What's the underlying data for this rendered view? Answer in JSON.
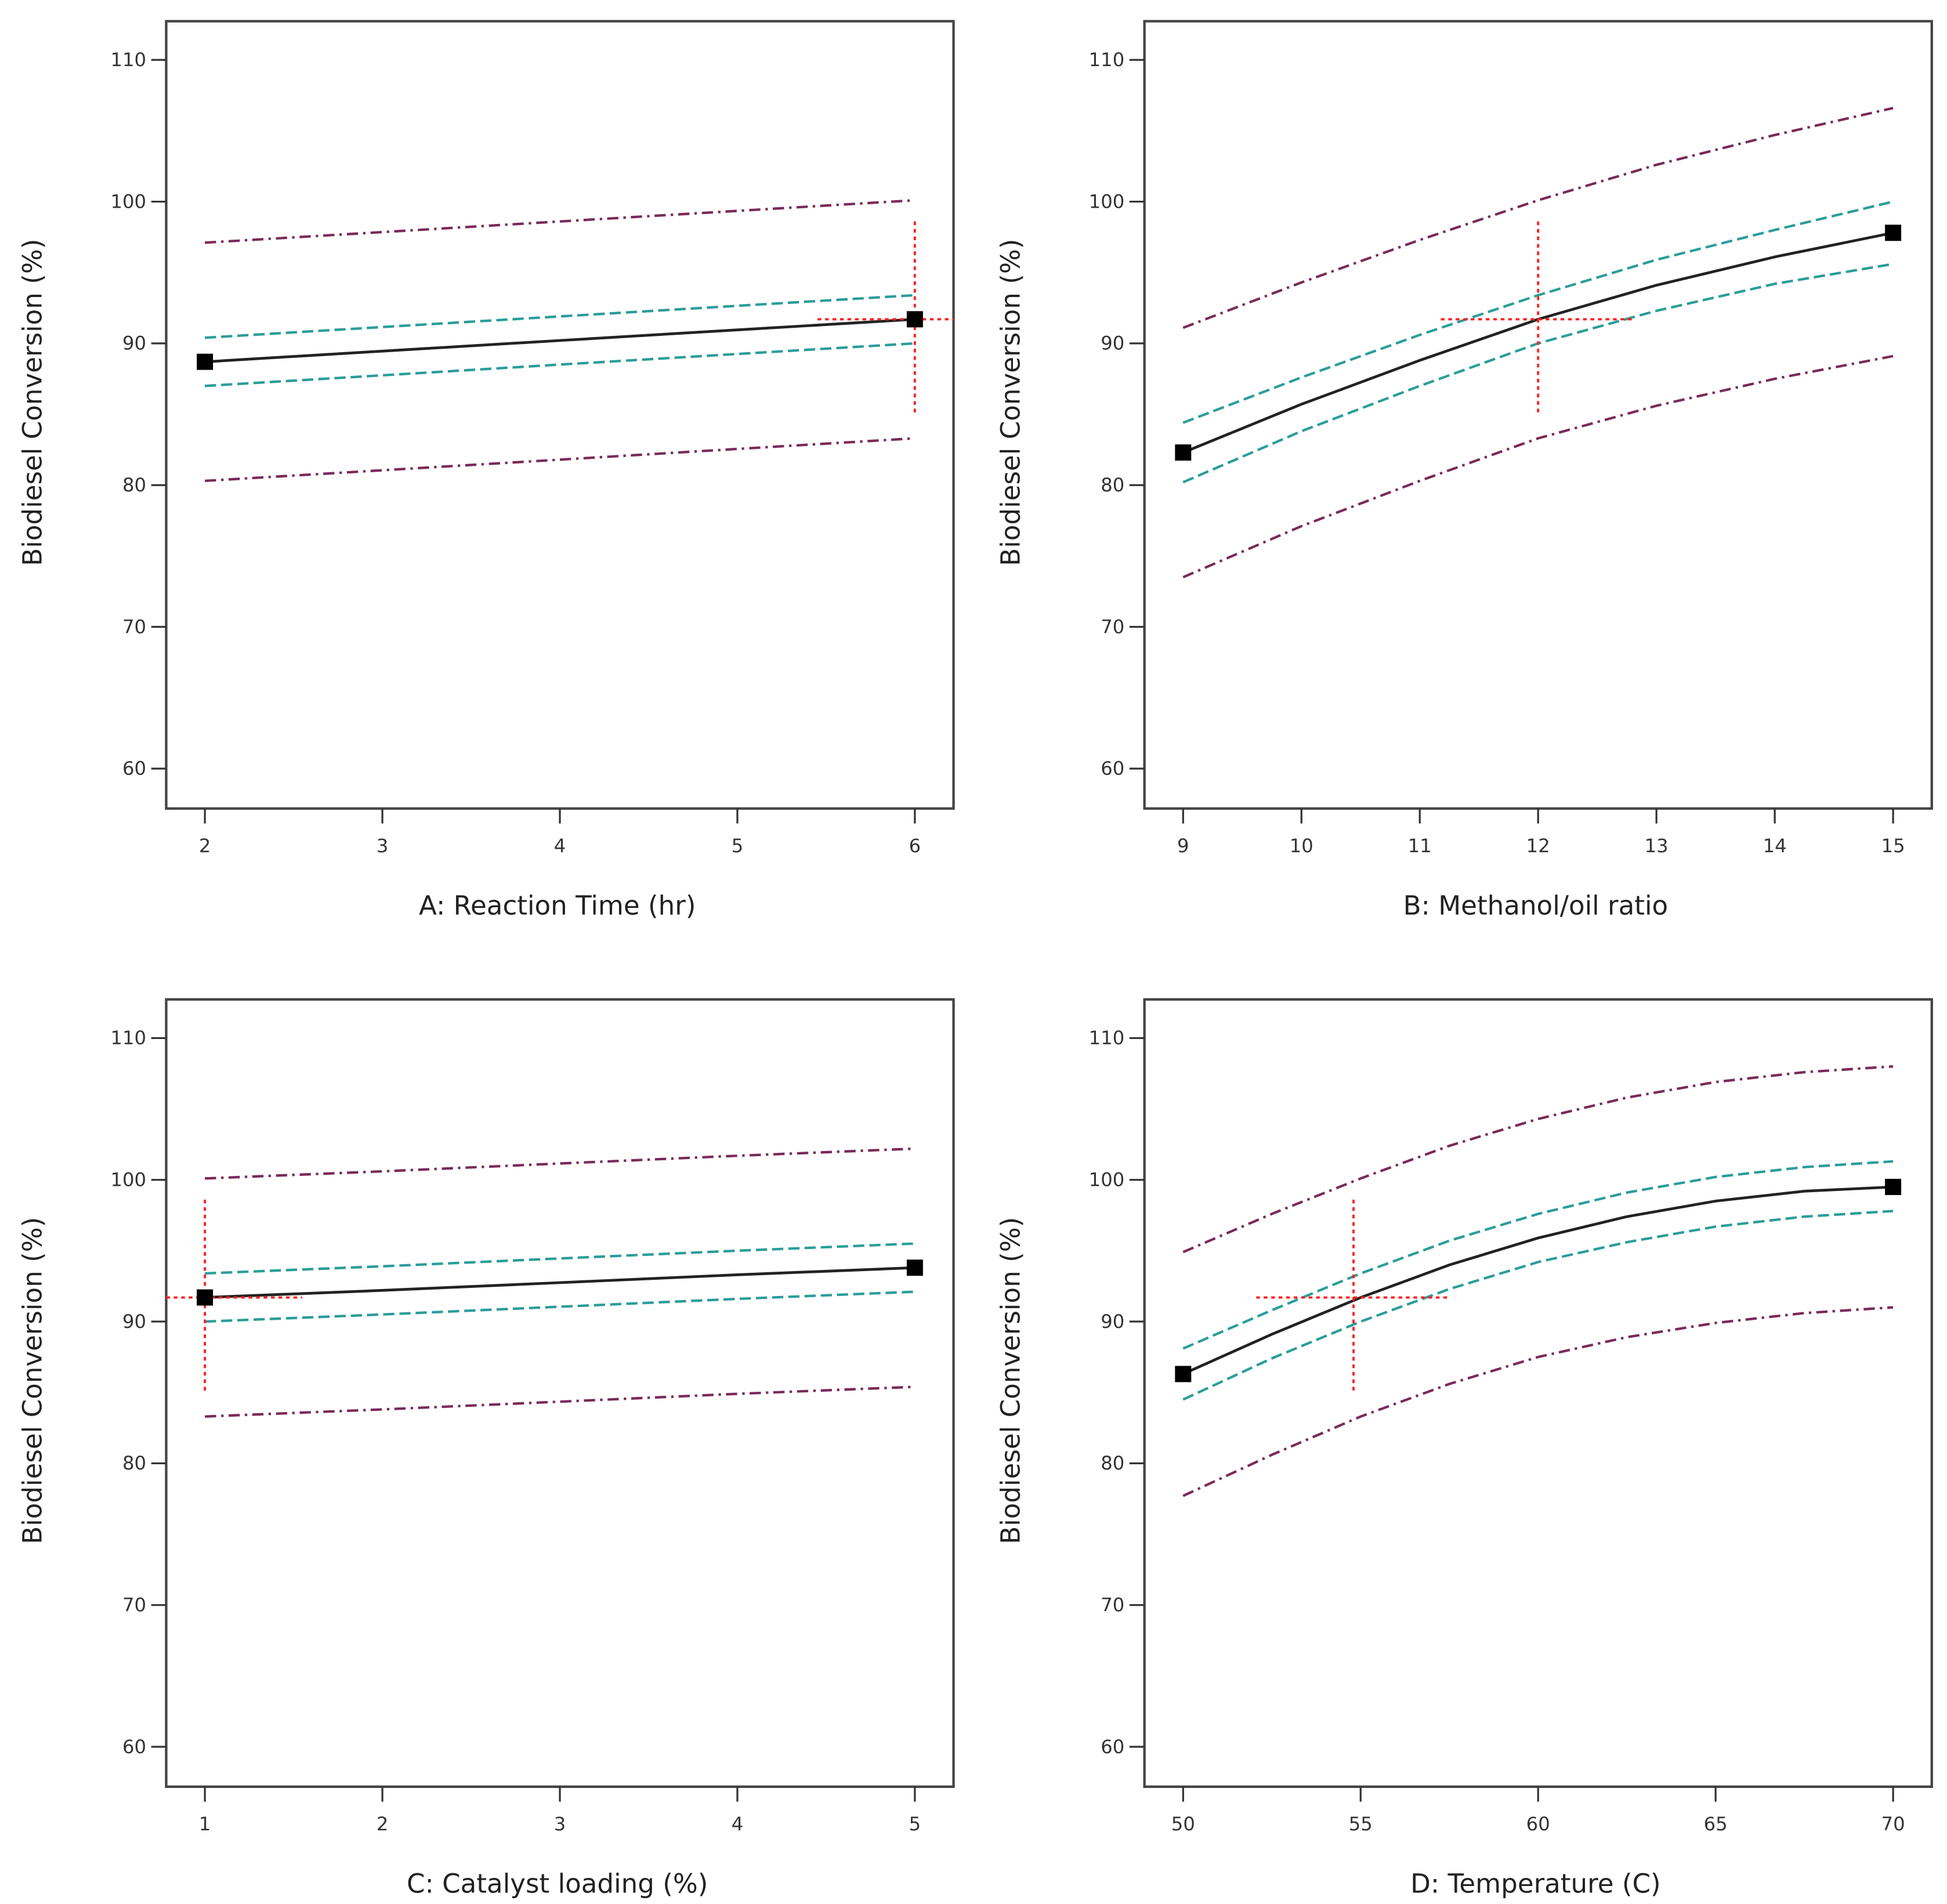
{
  "chart_data": [
    {
      "type": "line",
      "title": "",
      "xlabel": "A: Reaction Time (hr)",
      "ylabel": "Biodiesel Conversion (%)",
      "xlim": [
        2,
        6
      ],
      "ylim": [
        60,
        110
      ],
      "xticks": [
        2,
        3,
        4,
        5,
        6
      ],
      "yticks": [
        60,
        70,
        80,
        90,
        100,
        110
      ],
      "x": [
        2,
        3,
        4,
        5,
        6
      ],
      "prediction": [
        88.7,
        89.45,
        90.2,
        90.95,
        91.7
      ],
      "ci_upper": [
        90.4,
        91.15,
        91.9,
        92.65,
        93.4
      ],
      "ci_lower": [
        87.0,
        87.75,
        88.5,
        89.25,
        90.0
      ],
      "pi_upper": [
        97.1,
        97.85,
        98.6,
        99.35,
        100.1
      ],
      "pi_lower": [
        80.3,
        81.05,
        81.8,
        82.55,
        83.3
      ],
      "current_point": {
        "x": 6,
        "y": 91.7
      }
    },
    {
      "type": "line",
      "title": "",
      "xlabel": "B: Methanol/oil ratio",
      "ylabel": "Biodiesel Conversion (%)",
      "xlim": [
        9,
        15
      ],
      "ylim": [
        60,
        110
      ],
      "xticks": [
        9,
        10,
        11,
        12,
        13,
        14,
        15
      ],
      "yticks": [
        60,
        70,
        80,
        90,
        100,
        110
      ],
      "x": [
        9,
        10,
        11,
        12,
        13,
        14,
        15
      ],
      "prediction": [
        82.3,
        85.7,
        88.8,
        91.7,
        94.1,
        96.1,
        97.8
      ],
      "ci_upper": [
        84.4,
        87.6,
        90.6,
        93.4,
        95.9,
        98.0,
        100.0
      ],
      "ci_lower": [
        80.2,
        83.8,
        87.0,
        90.0,
        92.3,
        94.2,
        95.6
      ],
      "pi_upper": [
        91.1,
        94.3,
        97.3,
        100.1,
        102.6,
        104.7,
        106.6
      ],
      "pi_lower": [
        73.5,
        77.1,
        80.3,
        83.3,
        85.6,
        87.5,
        89.1
      ],
      "current_point": {
        "x": 12,
        "y": 91.7
      }
    },
    {
      "type": "line",
      "title": "",
      "xlabel": "C: Catalyst loading (%)",
      "ylabel": "Biodiesel Conversion (%)",
      "xlim": [
        1,
        5
      ],
      "ylim": [
        60,
        110
      ],
      "xticks": [
        1,
        2,
        3,
        4,
        5
      ],
      "yticks": [
        60,
        70,
        80,
        90,
        100,
        110
      ],
      "x": [
        1,
        2,
        3,
        4,
        5
      ],
      "prediction": [
        91.7,
        92.2,
        92.75,
        93.3,
        93.8
      ],
      "ci_upper": [
        93.4,
        93.9,
        94.45,
        95.0,
        95.5
      ],
      "ci_lower": [
        90.0,
        90.5,
        91.05,
        91.6,
        92.1
      ],
      "pi_upper": [
        100.1,
        100.6,
        101.15,
        101.7,
        102.2
      ],
      "pi_lower": [
        83.3,
        83.8,
        84.35,
        84.9,
        85.4
      ],
      "current_point": {
        "x": 1,
        "y": 91.7
      }
    },
    {
      "type": "line",
      "title": "",
      "xlabel": "D: Temperature (C)",
      "ylabel": "Biodiesel Conversion (%)",
      "xlim": [
        50,
        70
      ],
      "ylim": [
        60,
        110
      ],
      "xticks": [
        50,
        55,
        60,
        65,
        70
      ],
      "yticks": [
        60,
        70,
        80,
        90,
        100,
        110
      ],
      "x": [
        50,
        52.5,
        55,
        57.5,
        60,
        62.5,
        65,
        67.5,
        70
      ],
      "prediction": [
        86.3,
        89.1,
        91.7,
        94.0,
        95.9,
        97.4,
        98.5,
        99.2,
        99.5
      ],
      "ci_upper": [
        88.1,
        90.8,
        93.4,
        95.7,
        97.6,
        99.1,
        100.2,
        100.9,
        101.3
      ],
      "ci_lower": [
        84.5,
        87.4,
        90.0,
        92.3,
        94.2,
        95.6,
        96.7,
        97.4,
        97.8
      ],
      "pi_upper": [
        94.9,
        97.6,
        100.1,
        102.4,
        104.3,
        105.8,
        106.9,
        107.6,
        108.0
      ],
      "pi_lower": [
        77.7,
        80.6,
        83.3,
        85.6,
        87.5,
        88.9,
        89.9,
        90.6,
        91.0
      ],
      "current_point": {
        "x": 54.8,
        "y": 91.7
      }
    }
  ],
  "colors": {
    "prediction": "#222222",
    "ci": "#2a9d9a",
    "pi": "#7a2a5a",
    "crosshair": "#ff2020"
  }
}
